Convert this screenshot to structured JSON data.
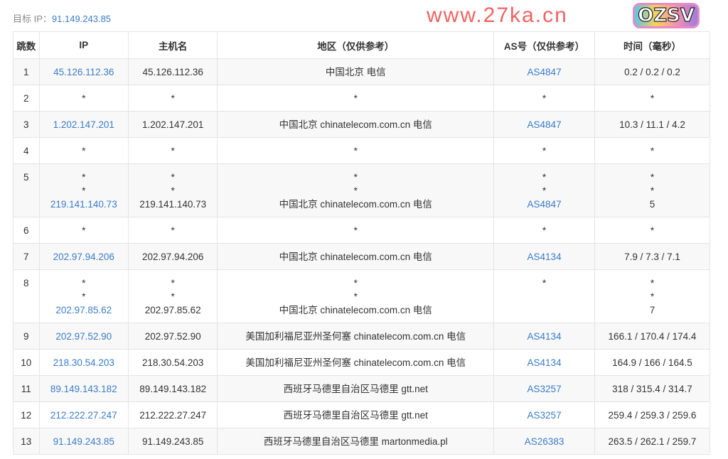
{
  "target": {
    "label": "目标 IP：",
    "ip": "91.149.243.85"
  },
  "headers": [
    "跳数",
    "IP",
    "主机名",
    "地区（仅供参考）",
    "AS号（仅供参考）",
    "时间（毫秒）"
  ],
  "rows": [
    {
      "hop": "1",
      "ip": [
        "45.126.112.36"
      ],
      "host": [
        "45.126.112.36"
      ],
      "region": [
        "中国北京 电信"
      ],
      "as": [
        "AS4847"
      ],
      "time": [
        "0.2 / 0.2 / 0.2"
      ]
    },
    {
      "hop": "2",
      "ip": [
        "*"
      ],
      "host": [
        "*"
      ],
      "region": [
        "*"
      ],
      "as": [
        "*"
      ],
      "time": [
        "*"
      ]
    },
    {
      "hop": "3",
      "ip": [
        "1.202.147.201"
      ],
      "host": [
        "1.202.147.201"
      ],
      "region": [
        "中国北京 chinatelecom.com.cn 电信"
      ],
      "as": [
        "AS4847"
      ],
      "time": [
        "10.3 / 11.1 / 4.2"
      ]
    },
    {
      "hop": "4",
      "ip": [
        "*"
      ],
      "host": [
        "*"
      ],
      "region": [
        "*"
      ],
      "as": [
        "*"
      ],
      "time": [
        "*"
      ]
    },
    {
      "hop": "5",
      "ip": [
        "*",
        "*",
        "219.141.140.73"
      ],
      "host": [
        "*",
        "*",
        "219.141.140.73"
      ],
      "region": [
        "*",
        "*",
        "中国北京 chinatelecom.com.cn 电信"
      ],
      "as": [
        "*",
        "*",
        "AS4847"
      ],
      "time": [
        "*",
        "*",
        "5"
      ]
    },
    {
      "hop": "6",
      "ip": [
        "*"
      ],
      "host": [
        "*"
      ],
      "region": [
        "*"
      ],
      "as": [
        "*"
      ],
      "time": [
        "*"
      ]
    },
    {
      "hop": "7",
      "ip": [
        "202.97.94.206"
      ],
      "host": [
        "202.97.94.206"
      ],
      "region": [
        "中国北京 chinatelecom.com.cn 电信"
      ],
      "as": [
        "AS4134"
      ],
      "time": [
        "7.9 / 7.3 / 7.1"
      ]
    },
    {
      "hop": "8",
      "ip": [
        "*",
        "*",
        "202.97.85.62"
      ],
      "host": [
        "*",
        "*",
        "202.97.85.62"
      ],
      "region": [
        "*",
        "*",
        "中国北京 chinatelecom.com.cn 电信"
      ],
      "as": [
        "*",
        "",
        ""
      ],
      "time": [
        "*",
        "*",
        "7"
      ]
    },
    {
      "hop": "9",
      "ip": [
        "202.97.52.90"
      ],
      "host": [
        "202.97.52.90"
      ],
      "region": [
        "美国加利福尼亚州圣何塞 chinatelecom.com.cn 电信"
      ],
      "as": [
        "AS4134"
      ],
      "time": [
        "166.1 / 170.4 / 174.4"
      ]
    },
    {
      "hop": "10",
      "ip": [
        "218.30.54.203"
      ],
      "host": [
        "218.30.54.203"
      ],
      "region": [
        "美国加利福尼亚州圣何塞 chinatelecom.com.cn 电信"
      ],
      "as": [
        "AS4134"
      ],
      "time": [
        "164.9 / 166 / 164.5"
      ]
    },
    {
      "hop": "11",
      "ip": [
        "89.149.143.182"
      ],
      "host": [
        "89.149.143.182"
      ],
      "region": [
        "西班牙马德里自治区马德里 gtt.net"
      ],
      "as": [
        "AS3257"
      ],
      "time": [
        "318 / 315.4 / 314.7"
      ]
    },
    {
      "hop": "12",
      "ip": [
        "212.222.27.247"
      ],
      "host": [
        "212.222.27.247"
      ],
      "region": [
        "西班牙马德里自治区马德里 gtt.net"
      ],
      "as": [
        "AS3257"
      ],
      "time": [
        "259.4 / 259.3 / 259.6"
      ]
    },
    {
      "hop": "13",
      "ip": [
        "91.149.243.85"
      ],
      "host": [
        "91.149.243.85"
      ],
      "region": [
        "西班牙马德里自治区马德里 martonmedia.pl"
      ],
      "as": [
        "AS26383"
      ],
      "time": [
        "263.5 / 262.1 / 259.7"
      ]
    }
  ],
  "watermark": "www.27ka.cn",
  "logo": "OZSV",
  "colors": {
    "link": "#3a7bc8",
    "watermark": "#f04646"
  }
}
